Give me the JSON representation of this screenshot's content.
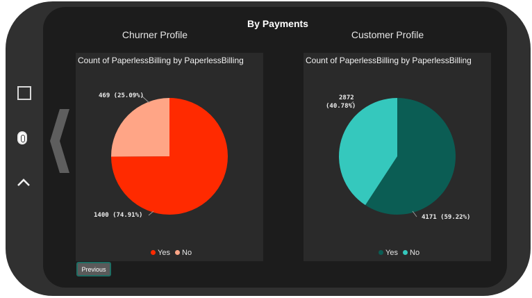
{
  "page": {
    "title": "By Payments",
    "previous_label": "Previous"
  },
  "colors": {
    "churn_yes": "#ff2a00",
    "churn_no": "#ffa586",
    "cust_yes": "#0b5d54",
    "cust_no": "#35c8bd"
  },
  "nav_icons": [
    "square-icon",
    "home-icon",
    "chevron-up-icon",
    "chevron-left-icon"
  ],
  "sections": [
    {
      "label": "Churner Profile"
    },
    {
      "label": "Customer Profile"
    }
  ],
  "chart_data": [
    {
      "type": "pie",
      "title": "Count of PaperlessBilling by PaperlessBilling",
      "categories": [
        "Yes",
        "No"
      ],
      "values": [
        1400,
        469
      ],
      "labels": [
        "1400 (74.91%)",
        "469 (25.09%)"
      ],
      "colors": [
        "#ff2a00",
        "#ffa586"
      ],
      "legend": "bottom"
    },
    {
      "type": "pie",
      "title": "Count of PaperlessBilling by PaperlessBilling",
      "categories": [
        "Yes",
        "No"
      ],
      "values": [
        4171,
        2872
      ],
      "labels": [
        "4171 (59.22%)",
        "2872 (40.78%)"
      ],
      "colors": [
        "#0b5d54",
        "#35c8bd"
      ],
      "legend": "bottom"
    }
  ]
}
